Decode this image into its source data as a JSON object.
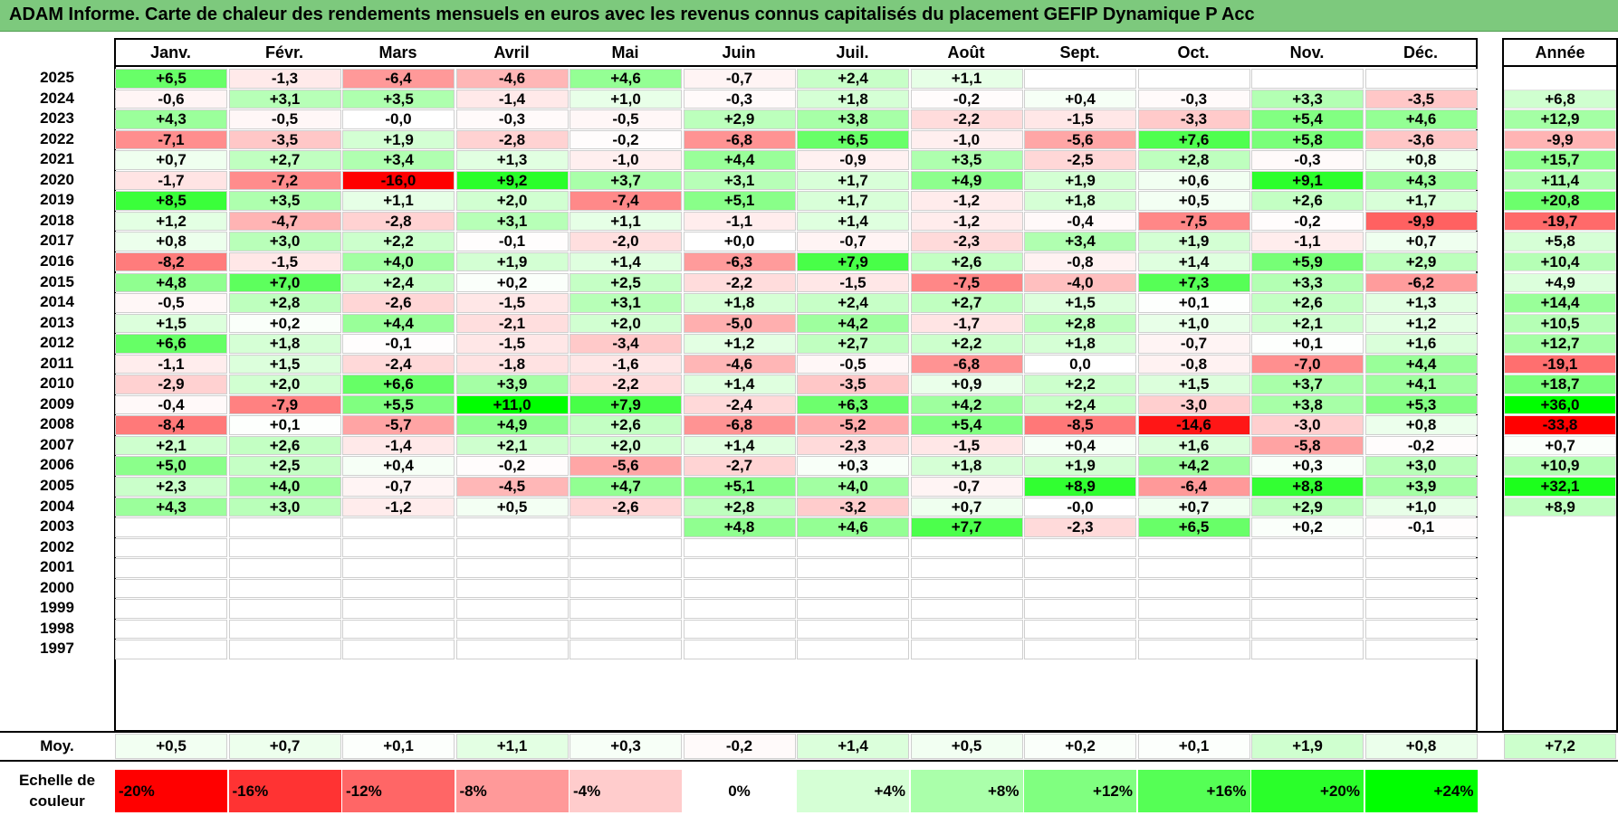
{
  "title": "ADAM Informe. Carte de chaleur des rendements mensuels en euros avec les revenus connus capitalisés du placement GEFIP Dynamique P Acc",
  "colors": {
    "title_bar": "#7dc97d",
    "negative_max": "#ff0000",
    "zero": "#ffffff",
    "positive_max": "#00ff00"
  },
  "chart_data": {
    "type": "heatmap",
    "title": "ADAM Informe. Carte de chaleur des rendements mensuels en euros avec les revenus connus capitalisés du placement GEFIP Dynamique P Acc",
    "columns": [
      "Janv.",
      "Févr.",
      "Mars",
      "Avril",
      "Mai",
      "Juin",
      "Juil.",
      "Août",
      "Sept.",
      "Oct.",
      "Nov.",
      "Déc."
    ],
    "year_column": "Année",
    "rows": [
      {
        "year": "2025",
        "months": [
          "+6,5",
          "-1,3",
          "-6,4",
          "-4,6",
          "+4,6",
          "-0,7",
          "+2,4",
          "+1,1",
          "",
          "",
          "",
          ""
        ],
        "annual": ""
      },
      {
        "year": "2024",
        "months": [
          "-0,6",
          "+3,1",
          "+3,5",
          "-1,4",
          "+1,0",
          "-0,3",
          "+1,8",
          "-0,2",
          "+0,4",
          "-0,3",
          "+3,3",
          "-3,5"
        ],
        "annual": "+6,8"
      },
      {
        "year": "2023",
        "months": [
          "+4,3",
          "-0,5",
          "-0,0",
          "-0,3",
          "-0,5",
          "+2,9",
          "+3,8",
          "-2,2",
          "-1,5",
          "-3,3",
          "+5,4",
          "+4,6"
        ],
        "annual": "+12,9"
      },
      {
        "year": "2022",
        "months": [
          "-7,1",
          "-3,5",
          "+1,9",
          "-2,8",
          "-0,2",
          "-6,8",
          "+6,5",
          "-1,0",
          "-5,6",
          "+7,6",
          "+5,8",
          "-3,6"
        ],
        "annual": "-9,9"
      },
      {
        "year": "2021",
        "months": [
          "+0,7",
          "+2,7",
          "+3,4",
          "+1,3",
          "-1,0",
          "+4,4",
          "-0,9",
          "+3,5",
          "-2,5",
          "+2,8",
          "-0,3",
          "+0,8"
        ],
        "annual": "+15,7"
      },
      {
        "year": "2020",
        "months": [
          "-1,7",
          "-7,2",
          "-16,0",
          "+9,2",
          "+3,7",
          "+3,1",
          "+1,7",
          "+4,9",
          "+1,9",
          "+0,6",
          "+9,1",
          "+4,3"
        ],
        "annual": "+11,4"
      },
      {
        "year": "2019",
        "months": [
          "+8,5",
          "+3,5",
          "+1,1",
          "+2,0",
          "-7,4",
          "+5,1",
          "+1,7",
          "-1,2",
          "+1,8",
          "+0,5",
          "+2,6",
          "+1,7"
        ],
        "annual": "+20,8"
      },
      {
        "year": "2018",
        "months": [
          "+1,2",
          "-4,7",
          "-2,8",
          "+3,1",
          "+1,1",
          "-1,1",
          "+1,4",
          "-1,2",
          "-0,4",
          "-7,5",
          "-0,2",
          "-9,9"
        ],
        "annual": "-19,7"
      },
      {
        "year": "2017",
        "months": [
          "+0,8",
          "+3,0",
          "+2,2",
          "-0,1",
          "-2,0",
          "+0,0",
          "-0,7",
          "-2,3",
          "+3,4",
          "+1,9",
          "-1,1",
          "+0,7"
        ],
        "annual": "+5,8"
      },
      {
        "year": "2016",
        "months": [
          "-8,2",
          "-1,5",
          "+4,0",
          "+1,9",
          "+1,4",
          "-6,3",
          "+7,9",
          "+2,6",
          "-0,8",
          "+1,4",
          "+5,9",
          "+2,9"
        ],
        "annual": "+10,4"
      },
      {
        "year": "2015",
        "months": [
          "+4,8",
          "+7,0",
          "+2,4",
          "+0,2",
          "+2,5",
          "-2,2",
          "-1,5",
          "-7,5",
          "-4,0",
          "+7,3",
          "+3,3",
          "-6,2"
        ],
        "annual": "+4,9"
      },
      {
        "year": "2014",
        "months": [
          "-0,5",
          "+2,8",
          "-2,6",
          "-1,5",
          "+3,1",
          "+1,8",
          "+2,4",
          "+2,7",
          "+1,5",
          "+0,1",
          "+2,6",
          "+1,3"
        ],
        "annual": "+14,4"
      },
      {
        "year": "2013",
        "months": [
          "+1,5",
          "+0,2",
          "+4,4",
          "-2,1",
          "+2,0",
          "-5,0",
          "+4,2",
          "-1,7",
          "+2,8",
          "+1,0",
          "+2,1",
          "+1,2"
        ],
        "annual": "+10,5"
      },
      {
        "year": "2012",
        "months": [
          "+6,6",
          "+1,8",
          "-0,1",
          "-1,5",
          "-3,4",
          "+1,2",
          "+2,7",
          "+2,2",
          "+1,8",
          "-0,7",
          "+0,1",
          "+1,6"
        ],
        "annual": "+12,7"
      },
      {
        "year": "2011",
        "months": [
          "-1,1",
          "+1,5",
          "-2,4",
          "-1,8",
          "-1,6",
          "-4,6",
          "-0,5",
          "-6,8",
          "0,0",
          "-0,8",
          "-7,0",
          "+4,4"
        ],
        "annual": "-19,1"
      },
      {
        "year": "2010",
        "months": [
          "-2,9",
          "+2,0",
          "+6,6",
          "+3,9",
          "-2,2",
          "+1,4",
          "-3,5",
          "+0,9",
          "+2,2",
          "+1,5",
          "+3,7",
          "+4,1"
        ],
        "annual": "+18,7"
      },
      {
        "year": "2009",
        "months": [
          "-0,4",
          "-7,9",
          "+5,5",
          "+11,0",
          "+7,9",
          "-2,4",
          "+6,3",
          "+4,2",
          "+2,4",
          "-3,0",
          "+3,8",
          "+5,3"
        ],
        "annual": "+36,0"
      },
      {
        "year": "2008",
        "months": [
          "-8,4",
          "+0,1",
          "-5,7",
          "+4,9",
          "+2,6",
          "-6,8",
          "-5,2",
          "+5,4",
          "-8,5",
          "-14,6",
          "-3,0",
          "+0,8"
        ],
        "annual": "-33,8"
      },
      {
        "year": "2007",
        "months": [
          "+2,1",
          "+2,6",
          "-1,4",
          "+2,1",
          "+2,0",
          "+1,4",
          "-2,3",
          "-1,5",
          "+0,4",
          "+1,6",
          "-5,8",
          "-0,2"
        ],
        "annual": "+0,7"
      },
      {
        "year": "2006",
        "months": [
          "+5,0",
          "+2,5",
          "+0,4",
          "-0,2",
          "-5,6",
          "-2,7",
          "+0,3",
          "+1,8",
          "+1,9",
          "+4,2",
          "+0,3",
          "+3,0"
        ],
        "annual": "+10,9"
      },
      {
        "year": "2005",
        "months": [
          "+2,3",
          "+4,0",
          "-0,7",
          "-4,5",
          "+4,7",
          "+5,1",
          "+4,0",
          "-0,7",
          "+8,9",
          "-6,4",
          "+8,8",
          "+3,9"
        ],
        "annual": "+32,1"
      },
      {
        "year": "2004",
        "months": [
          "+4,3",
          "+3,0",
          "-1,2",
          "+0,5",
          "-2,6",
          "+2,8",
          "-3,2",
          "+0,7",
          "-0,0",
          "+0,7",
          "+2,9",
          "+1,0"
        ],
        "annual": "+8,9"
      },
      {
        "year": "2003",
        "months": [
          "",
          "",
          "",
          "",
          "",
          "+4,8",
          "+4,6",
          "+7,7",
          "-2,3",
          "+6,5",
          "+0,2",
          "-0,1"
        ],
        "annual": ""
      },
      {
        "year": "2002",
        "months": [
          "",
          "",
          "",
          "",
          "",
          "",
          "",
          "",
          "",
          "",
          "",
          ""
        ],
        "annual": ""
      },
      {
        "year": "2001",
        "months": [
          "",
          "",
          "",
          "",
          "",
          "",
          "",
          "",
          "",
          "",
          "",
          ""
        ],
        "annual": ""
      },
      {
        "year": "2000",
        "months": [
          "",
          "",
          "",
          "",
          "",
          "",
          "",
          "",
          "",
          "",
          "",
          ""
        ],
        "annual": ""
      },
      {
        "year": "1999",
        "months": [
          "",
          "",
          "",
          "",
          "",
          "",
          "",
          "",
          "",
          "",
          "",
          ""
        ],
        "annual": ""
      },
      {
        "year": "1998",
        "months": [
          "",
          "",
          "",
          "",
          "",
          "",
          "",
          "",
          "",
          "",
          "",
          ""
        ],
        "annual": ""
      },
      {
        "year": "1997",
        "months": [
          "",
          "",
          "",
          "",
          "",
          "",
          "",
          "",
          "",
          "",
          "",
          ""
        ],
        "annual": ""
      }
    ],
    "average": {
      "label": "Moy.",
      "months": [
        "+0,5",
        "+0,7",
        "+0,1",
        "+1,1",
        "+0,3",
        "-0,2",
        "+1,4",
        "+0,5",
        "+0,2",
        "+0,1",
        "+1,9",
        "+0,8"
      ],
      "annual": "+7,2"
    },
    "scale": {
      "label": "Echelle de couleur",
      "entries": [
        "-20%",
        "-16%",
        "-12%",
        "-8%",
        "-4%",
        "0%",
        "+4%",
        "+8%",
        "+12%",
        "+16%",
        "+20%",
        "+24%"
      ],
      "range": [
        -20,
        24
      ]
    }
  }
}
